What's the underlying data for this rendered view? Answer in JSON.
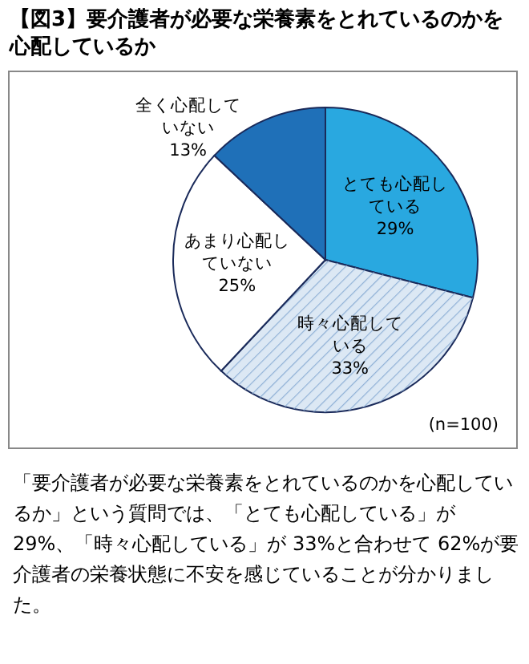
{
  "chart_data": {
    "type": "pie",
    "title": "【図3】要介護者が必要な栄養素をとれているのかを心配しているか",
    "categories": [
      "とても心配している",
      "時々心配している",
      "あまり心配していない",
      "全く心配していない"
    ],
    "values": [
      29,
      33,
      25,
      13
    ],
    "value_labels": [
      "29%",
      "33%",
      "25%",
      "13%"
    ],
    "colors": [
      "#29a8e0",
      "#dce8f4",
      "#ffffff",
      "#1f70b8"
    ],
    "annotations": [
      "(n=100)",
      "「要介護者が必要な栄養素をとれているのかを心配しているか」という質問では、「とても心配している」が 29%、「時々心配している」が 33%と合わせて 62%が要介護者の栄養状態に不安を感じていることが分かりました。"
    ]
  }
}
